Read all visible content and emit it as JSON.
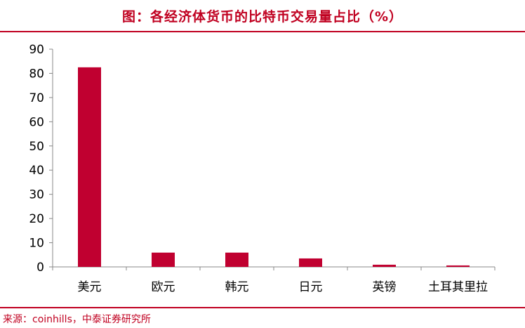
{
  "header": {
    "title": "图：各经济体货币的比特币交易量占比（%）"
  },
  "footer": {
    "source": "来源：coinhills，中泰证券研究所"
  },
  "chart_data": {
    "type": "bar",
    "title": "图：各经济体货币的比特币交易量占比（%）",
    "xlabel": "",
    "ylabel": "",
    "categories": [
      "美元",
      "欧元",
      "韩元",
      "日元",
      "英镑",
      "土耳其里拉"
    ],
    "values": [
      82.5,
      5.9,
      5.9,
      3.5,
      0.9,
      0.6
    ],
    "ylim": [
      0,
      90
    ],
    "yticks": [
      0,
      10,
      20,
      30,
      40,
      50,
      60,
      70,
      80,
      90
    ],
    "bar_color": "#c00030",
    "grid": false,
    "legend": "none"
  }
}
